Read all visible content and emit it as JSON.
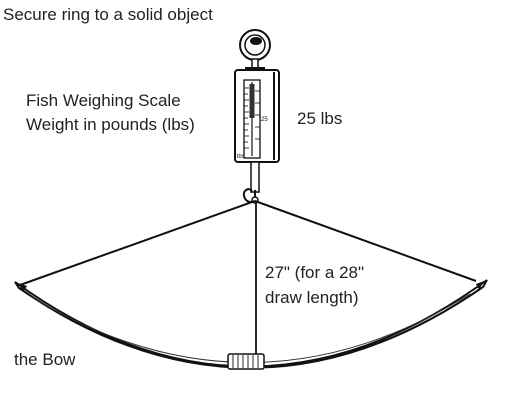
{
  "labels": {
    "secure": "Secure ring to a solid object",
    "scale_title": "Fish Weighing Scale",
    "scale_units": "Weight in pounds (lbs)",
    "weight": "25 lbs",
    "length_line1": "27\" (for a 28\"",
    "length_line2": "draw length)",
    "bow": "the Bow"
  },
  "scale_face": {
    "marking": "25",
    "unit": "lbs"
  }
}
